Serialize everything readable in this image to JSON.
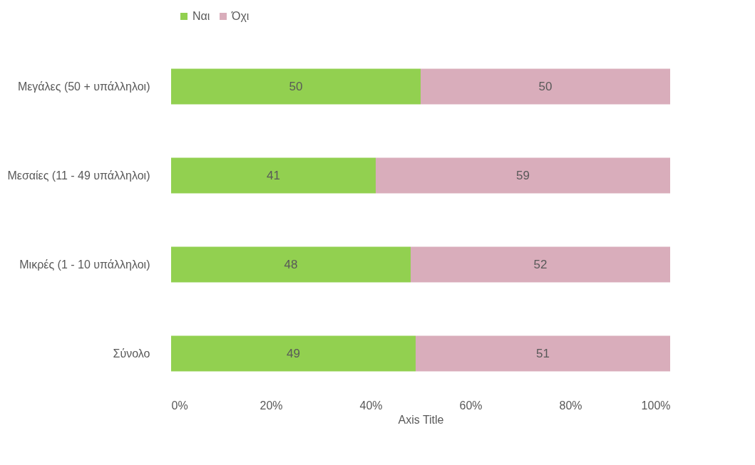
{
  "chart_data": {
    "type": "bar",
    "orientation": "horizontal",
    "stacked": true,
    "data_labels": true,
    "legend": "top",
    "xlabel": "Axis Title",
    "categories": [
      "Μεγάλες (50 + υπάλληλοι)",
      "Μεσαίες  (11 - 49 υπάλληλοι)",
      "Μικρές (1 - 10 υπάλληλοι)",
      "Σύνολο"
    ],
    "series": [
      {
        "name": "Ναι",
        "color": "#92d050",
        "values": [
          50,
          41,
          48,
          49
        ]
      },
      {
        "name": "Όχι",
        "color": "#d9adbb",
        "values": [
          50,
          59,
          52,
          51
        ]
      }
    ],
    "xlim": [
      0,
      100
    ],
    "xticks": [
      {
        "value": 0,
        "label": "0%"
      },
      {
        "value": 20,
        "label": "20%"
      },
      {
        "value": 40,
        "label": "40%"
      },
      {
        "value": 60,
        "label": "60%"
      },
      {
        "value": 80,
        "label": "80%"
      },
      {
        "value": 100,
        "label": "100%"
      }
    ],
    "grid": false
  }
}
